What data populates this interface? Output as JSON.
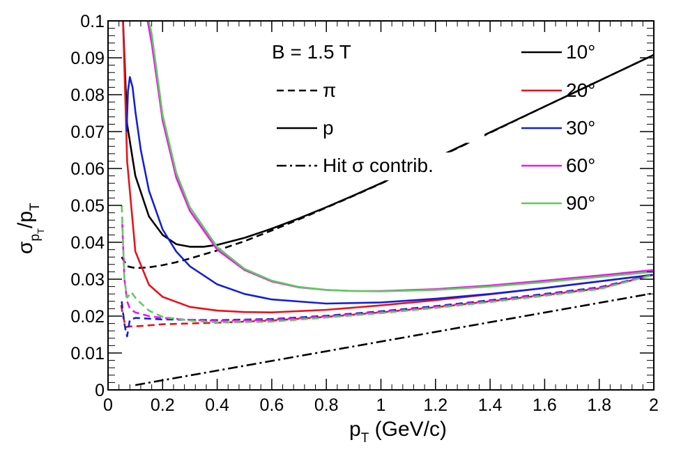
{
  "chart_data": {
    "type": "line",
    "title": "",
    "xlabel": {
      "main": "p",
      "sub": "T",
      "rest": " (GeV/c)"
    },
    "ylabel": {
      "sigma": "σ",
      "sub1": "p",
      "subsub": "T",
      "slash": "/p",
      "sub2": "T"
    },
    "xlim": [
      0,
      2
    ],
    "ylim": [
      0,
      0.1
    ],
    "x_ticks": [
      {
        "value": 0,
        "label": "0"
      },
      {
        "value": 0.2,
        "label": "0.2"
      },
      {
        "value": 0.4,
        "label": "0.4"
      },
      {
        "value": 0.6,
        "label": "0.6"
      },
      {
        "value": 0.8,
        "label": "0.8"
      },
      {
        "value": 1,
        "label": "1"
      },
      {
        "value": 1.2,
        "label": "1.2"
      },
      {
        "value": 1.4,
        "label": "1.4"
      },
      {
        "value": 1.6,
        "label": "1.6"
      },
      {
        "value": 1.8,
        "label": "1.8"
      },
      {
        "value": 2,
        "label": "2"
      }
    ],
    "y_ticks": [
      {
        "value": 0,
        "label": "0"
      },
      {
        "value": 0.01,
        "label": "0.01"
      },
      {
        "value": 0.02,
        "label": "0.02"
      },
      {
        "value": 0.03,
        "label": "0.03"
      },
      {
        "value": 0.04,
        "label": "0.04"
      },
      {
        "value": 0.05,
        "label": "0.05"
      },
      {
        "value": 0.06,
        "label": "0.06"
      },
      {
        "value": 0.07,
        "label": "0.07"
      },
      {
        "value": 0.08,
        "label": "0.08"
      },
      {
        "value": 0.09,
        "label": "0.09"
      },
      {
        "value": 0.1,
        "label": "0.1"
      }
    ],
    "legend_style": {
      "title": "B = 1.5 T",
      "entries": [
        {
          "label": "π",
          "style": "dashed"
        },
        {
          "label": "p",
          "style": "solid"
        },
        {
          "label": "Hit σ contrib.",
          "style": "dashdot"
        }
      ]
    },
    "legend_angle": [
      {
        "label": "10°",
        "color": "#000000"
      },
      {
        "label": "20°",
        "color": "#e8121a"
      },
      {
        "label": "30°",
        "color": "#1320d8"
      },
      {
        "label": "60°",
        "color": "#f013f0"
      },
      {
        "label": "90°",
        "color": "#5ccc5c"
      }
    ],
    "series": [
      {
        "name": "p 10°",
        "angle": "10°",
        "particle": "p",
        "style": "solid",
        "color": "#000000",
        "x": [
          0.055,
          0.07,
          0.1,
          0.15,
          0.2,
          0.25,
          0.3,
          0.35,
          0.4,
          0.5,
          0.6,
          0.7,
          0.8,
          0.9,
          1.0,
          1.2,
          1.4,
          1.6,
          1.8,
          2.0
        ],
        "y": [
          0.1,
          0.072,
          0.058,
          0.047,
          0.042,
          0.0395,
          0.0388,
          0.0388,
          0.0393,
          0.0412,
          0.0437,
          0.0465,
          0.0495,
          0.0527,
          0.056,
          0.0628,
          0.0698,
          0.0768,
          0.0838,
          0.0908
        ]
      },
      {
        "name": "π 10°",
        "angle": "10°",
        "particle": "π",
        "style": "dashed",
        "color": "#000000",
        "x": [
          0.05,
          0.07,
          0.1,
          0.15,
          0.2,
          0.25,
          0.3,
          0.4,
          0.5,
          0.6,
          0.7,
          0.8,
          0.9,
          1.0,
          1.2,
          1.4,
          1.6,
          1.8,
          2.0
        ],
        "y": [
          0.036,
          0.0335,
          0.033,
          0.0332,
          0.0338,
          0.0346,
          0.0356,
          0.0378,
          0.0403,
          0.0432,
          0.0462,
          0.0494,
          0.0526,
          0.0559,
          0.0627,
          0.0697,
          0.0768,
          0.0838,
          0.0908
        ]
      },
      {
        "name": "p 20°",
        "angle": "20°",
        "particle": "p",
        "style": "solid",
        "color": "#e8121a",
        "x": [
          0.055,
          0.07,
          0.1,
          0.15,
          0.2,
          0.3,
          0.4,
          0.5,
          0.6,
          0.8,
          1.0,
          1.2,
          1.4,
          1.6,
          1.8,
          2.0
        ],
        "y": [
          0.1,
          0.062,
          0.0375,
          0.0285,
          0.0252,
          0.0225,
          0.0215,
          0.0211,
          0.021,
          0.0217,
          0.0229,
          0.0243,
          0.0259,
          0.0276,
          0.0294,
          0.0312
        ]
      },
      {
        "name": "π 20°",
        "angle": "20°",
        "particle": "π",
        "style": "dashed",
        "color": "#e8121a",
        "x": [
          0.048,
          0.055,
          0.065,
          0.08,
          0.1,
          0.15,
          0.2,
          0.3,
          0.4,
          0.6,
          0.8,
          1.0,
          1.2,
          1.4,
          1.6,
          1.8,
          2.0
        ],
        "y": [
          0.023,
          0.02,
          0.017,
          0.0172,
          0.0172,
          0.0175,
          0.0178,
          0.018,
          0.0182,
          0.0188,
          0.0198,
          0.021,
          0.0224,
          0.024,
          0.0257,
          0.0275,
          0.0312
        ]
      },
      {
        "name": "p 30°",
        "angle": "30°",
        "particle": "p",
        "style": "solid",
        "color": "#1320d8",
        "x": [
          0.068,
          0.073,
          0.08,
          0.09,
          0.1,
          0.12,
          0.15,
          0.2,
          0.25,
          0.3,
          0.4,
          0.5,
          0.6,
          0.8,
          1.0,
          1.2,
          1.4,
          1.6,
          1.8,
          2.0
        ],
        "y": [
          0.07,
          0.081,
          0.0848,
          0.082,
          0.0755,
          0.065,
          0.054,
          0.0435,
          0.0375,
          0.0335,
          0.0286,
          0.026,
          0.0245,
          0.0234,
          0.0237,
          0.0247,
          0.026,
          0.0276,
          0.0294,
          0.0312
        ]
      },
      {
        "name": "π 30°",
        "angle": "30°",
        "particle": "π",
        "style": "dashed",
        "color": "#1320d8",
        "x": [
          0.05,
          0.055,
          0.06,
          0.065,
          0.07,
          0.075,
          0.08,
          0.1,
          0.15,
          0.2,
          0.3,
          0.4,
          0.6,
          0.8,
          1.0,
          1.2,
          1.4,
          1.6,
          1.8,
          2.0
        ],
        "y": [
          0.024,
          0.021,
          0.018,
          0.016,
          0.0145,
          0.017,
          0.019,
          0.0195,
          0.0193,
          0.0191,
          0.019,
          0.0189,
          0.0192,
          0.0201,
          0.0213,
          0.0227,
          0.0243,
          0.026,
          0.0278,
          0.0312
        ]
      },
      {
        "name": "p 60°",
        "angle": "60°",
        "particle": "p",
        "style": "solid",
        "color": "#f013f0",
        "x": [
          0.145,
          0.16,
          0.2,
          0.25,
          0.3,
          0.4,
          0.5,
          0.6,
          0.7,
          0.8,
          0.9,
          1.0,
          1.2,
          1.4,
          1.6,
          1.8,
          2.0
        ],
        "y": [
          0.1,
          0.094,
          0.073,
          0.0575,
          0.0485,
          0.038,
          0.0325,
          0.0294,
          0.0278,
          0.0271,
          0.0268,
          0.0268,
          0.0273,
          0.0283,
          0.0296,
          0.031,
          0.0325
        ]
      },
      {
        "name": "π 60°",
        "angle": "60°",
        "particle": "π",
        "style": "dashed",
        "color": "#f013f0",
        "x": [
          0.052,
          0.06,
          0.07,
          0.08,
          0.1,
          0.15,
          0.2,
          0.3,
          0.4,
          0.6,
          0.8,
          1.0,
          1.2,
          1.4,
          1.6,
          1.8,
          2.0
        ],
        "y": [
          0.045,
          0.03,
          0.024,
          0.022,
          0.021,
          0.02,
          0.0195,
          0.019,
          0.0187,
          0.019,
          0.0199,
          0.0211,
          0.0225,
          0.0241,
          0.0258,
          0.0276,
          0.0312
        ]
      },
      {
        "name": "p 90°",
        "angle": "90°",
        "particle": "p",
        "style": "solid",
        "color": "#5ccc5c",
        "x": [
          0.15,
          0.16,
          0.2,
          0.25,
          0.3,
          0.4,
          0.5,
          0.6,
          0.7,
          0.8,
          0.9,
          1.0,
          1.2,
          1.4,
          1.6,
          1.8,
          2.0
        ],
        "y": [
          0.1,
          0.0965,
          0.0745,
          0.0588,
          0.0495,
          0.0387,
          0.0328,
          0.0296,
          0.0279,
          0.0271,
          0.0268,
          0.0267,
          0.0271,
          0.028,
          0.0292,
          0.0306,
          0.032
        ]
      },
      {
        "name": "π 90°",
        "angle": "90°",
        "particle": "π",
        "style": "dashed",
        "color": "#5ccc5c",
        "x": [
          0.05,
          0.055,
          0.06,
          0.07,
          0.085,
          0.1,
          0.12,
          0.15,
          0.2,
          0.3,
          0.4,
          0.6,
          0.8,
          1.0,
          1.2,
          1.4,
          1.6,
          1.8,
          2.0
        ],
        "y": [
          0.05,
          0.04,
          0.03,
          0.025,
          0.0265,
          0.025,
          0.0235,
          0.0215,
          0.0198,
          0.0188,
          0.0183,
          0.0185,
          0.0196,
          0.0208,
          0.0222,
          0.0238,
          0.0255,
          0.0273,
          0.0312
        ]
      },
      {
        "name": "Hit σ contrib.",
        "angle": "",
        "particle": "hit",
        "style": "dashdot",
        "color": "#000000",
        "x": [
          0.1,
          2.0
        ],
        "y": [
          0.0013,
          0.0262
        ]
      }
    ]
  }
}
